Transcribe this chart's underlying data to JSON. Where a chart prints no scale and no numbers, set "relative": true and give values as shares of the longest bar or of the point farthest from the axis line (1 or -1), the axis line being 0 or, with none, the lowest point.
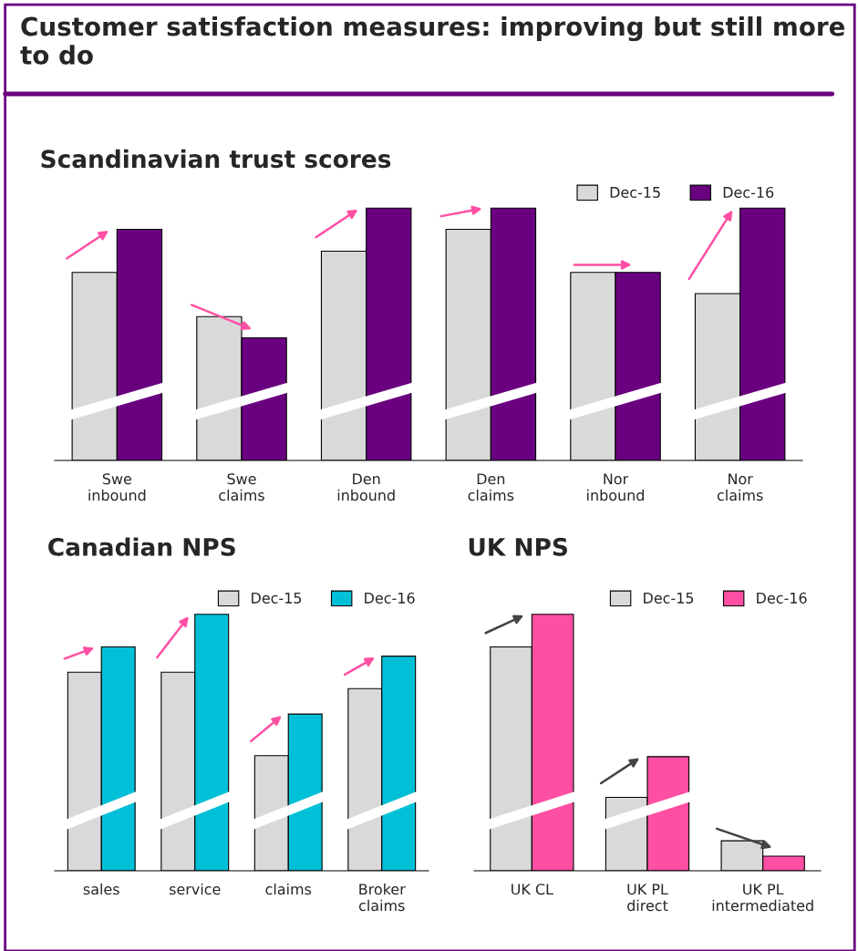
{
  "chart_data": [
    {
      "type": "other",
      "title": "Customer satisfaction measures: improving but still more to do"
    },
    {
      "type": "bar",
      "title": "Scandinavian trust scores",
      "relative": true,
      "legend": "top right",
      "categories": [
        "Swe\ninbound",
        "Swe\nclaims",
        "Den\ninbound",
        "Den\nclaims",
        "Nor\ninbound",
        "Nor\nclaims"
      ],
      "series": [
        {
          "name": "Dec-15",
          "color": "#d9d9d9",
          "values": [
            0.745,
            0.57,
            0.829,
            0.916,
            0.745,
            0.661
          ]
        },
        {
          "name": "Dec-16",
          "color": "#6a0080",
          "values": [
            0.916,
            0.486,
            1,
            1,
            0.745,
            1
          ]
        }
      ]
    },
    {
      "type": "bar",
      "title": "Canadian NPS",
      "relative": true,
      "legend": "top right",
      "categories": [
        "sales",
        "service",
        "claims",
        "Broker\nclaims"
      ],
      "series": [
        {
          "name": "Dec-15",
          "color": "#d9d9d9",
          "values": [
            0.774,
            0.774,
            0.449,
            0.71
          ]
        },
        {
          "name": "Dec-16",
          "color": "#00c0d8",
          "values": [
            0.873,
            1,
            0.611,
            0.837
          ]
        }
      ]
    },
    {
      "type": "bar",
      "title": "UK NPS",
      "relative": true,
      "legend": "top right",
      "categories": [
        "UK CL",
        "UK PL\ndirect",
        "UK PL\nintermediated"
      ],
      "series": [
        {
          "name": "Dec-15",
          "color": "#d9d9d9",
          "values": [
            0.873,
            0.286,
            0.117
          ]
        },
        {
          "name": "Dec-16",
          "color": "#ff4fa3",
          "values": [
            1,
            0.445,
            0.057
          ]
        }
      ]
    }
  ]
}
